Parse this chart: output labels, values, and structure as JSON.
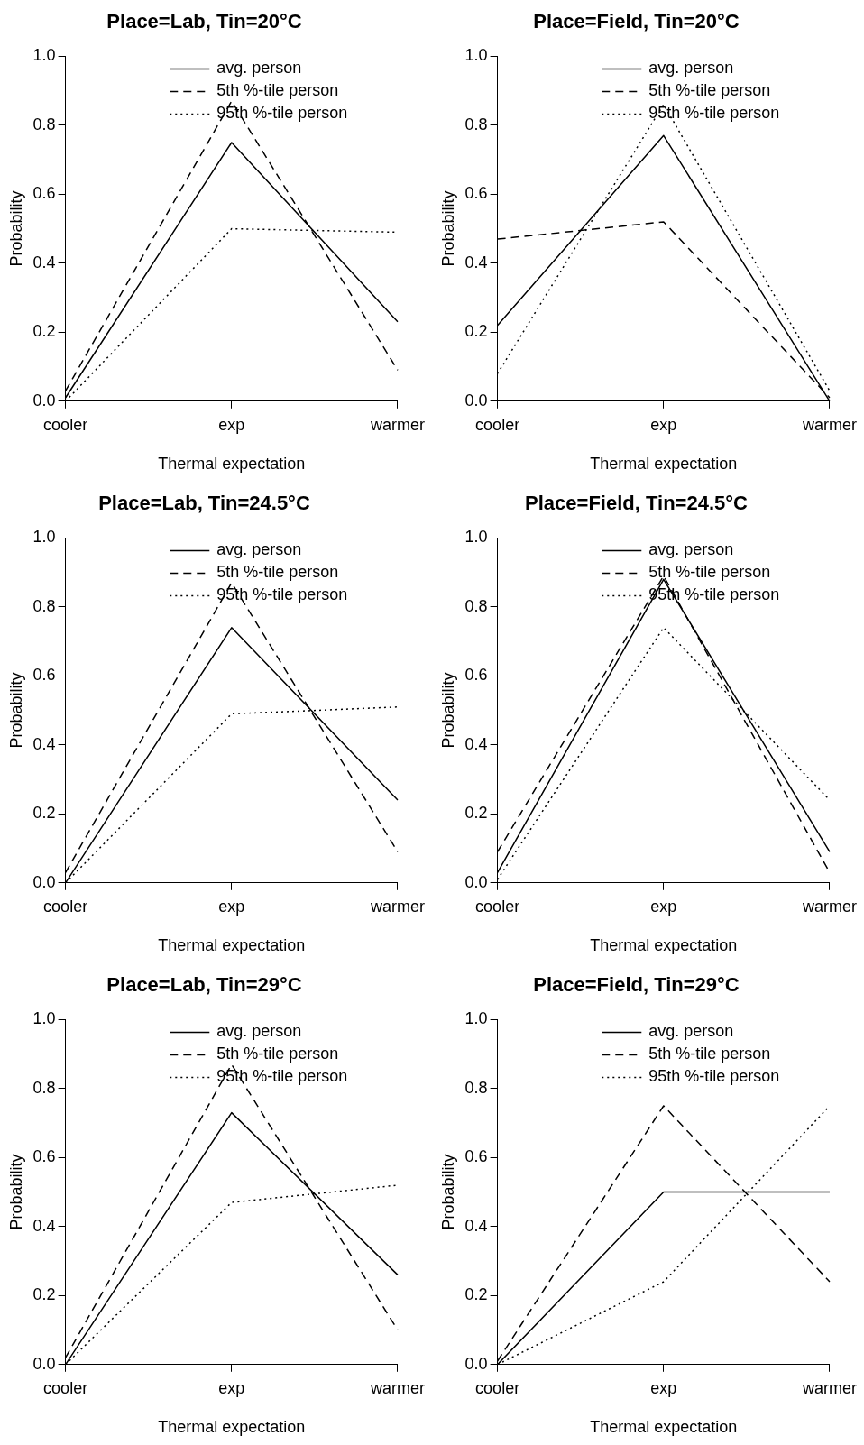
{
  "chart_data": [
    {
      "type": "line",
      "title": "Place=Lab, Tin=20°C",
      "xlabel": "Thermal expectation",
      "ylabel": "Probability",
      "categories": [
        "cooler",
        "exp",
        "warmer"
      ],
      "ylim": [
        0,
        1
      ],
      "yticks": [
        {
          "value": 0,
          "label": "0.0"
        },
        {
          "value": 0.2,
          "label": "0.2"
        },
        {
          "value": 0.4,
          "label": "0.4"
        },
        {
          "value": 0.6,
          "label": "0.6"
        },
        {
          "value": 0.8,
          "label": "0.8"
        },
        {
          "value": 1,
          "label": "1.0"
        }
      ],
      "legend": "top",
      "series": [
        {
          "name": "avg. person",
          "color": "#000000",
          "line_style": "solid",
          "values": [
            0.01,
            0.75,
            0.23
          ]
        },
        {
          "name": "5th %-tile person",
          "color": "#000000",
          "line_style": "dashed",
          "values": [
            0.03,
            0.87,
            0.09
          ]
        },
        {
          "name": "95th %-tile person",
          "color": "#000000",
          "line_style": "dotted",
          "values": [
            0.0,
            0.5,
            0.49
          ]
        }
      ]
    },
    {
      "type": "line",
      "title": "Place=Field, Tin=20°C",
      "xlabel": "Thermal expectation",
      "ylabel": "Probability",
      "categories": [
        "cooler",
        "exp",
        "warmer"
      ],
      "ylim": [
        0,
        1
      ],
      "yticks": [
        {
          "value": 0,
          "label": "0.0"
        },
        {
          "value": 0.2,
          "label": "0.2"
        },
        {
          "value": 0.4,
          "label": "0.4"
        },
        {
          "value": 0.6,
          "label": "0.6"
        },
        {
          "value": 0.8,
          "label": "0.8"
        },
        {
          "value": 1,
          "label": "1.0"
        }
      ],
      "legend": "top",
      "series": [
        {
          "name": "avg. person",
          "color": "#000000",
          "line_style": "solid",
          "values": [
            0.22,
            0.77,
            0.0
          ]
        },
        {
          "name": "5th %-tile person",
          "color": "#000000",
          "line_style": "dashed",
          "values": [
            0.47,
            0.52,
            0.01
          ]
        },
        {
          "name": "95th %-tile person",
          "color": "#000000",
          "line_style": "dotted",
          "values": [
            0.08,
            0.86,
            0.03
          ]
        }
      ]
    },
    {
      "type": "line",
      "title": "Place=Lab, Tin=24.5°C",
      "xlabel": "Thermal expectation",
      "ylabel": "Probability",
      "categories": [
        "cooler",
        "exp",
        "warmer"
      ],
      "ylim": [
        0,
        1
      ],
      "yticks": [
        {
          "value": 0,
          "label": "0.0"
        },
        {
          "value": 0.2,
          "label": "0.2"
        },
        {
          "value": 0.4,
          "label": "0.4"
        },
        {
          "value": 0.6,
          "label": "0.6"
        },
        {
          "value": 0.8,
          "label": "0.8"
        },
        {
          "value": 1,
          "label": "1.0"
        }
      ],
      "legend": "top",
      "series": [
        {
          "name": "avg. person",
          "color": "#000000",
          "line_style": "solid",
          "values": [
            0.0,
            0.74,
            0.24
          ]
        },
        {
          "name": "5th %-tile person",
          "color": "#000000",
          "line_style": "dashed",
          "values": [
            0.03,
            0.87,
            0.09
          ]
        },
        {
          "name": "95th %-tile person",
          "color": "#000000",
          "line_style": "dotted",
          "values": [
            0.0,
            0.49,
            0.51
          ]
        }
      ]
    },
    {
      "type": "line",
      "title": "Place=Field, Tin=24.5°C",
      "xlabel": "Thermal expectation",
      "ylabel": "Probability",
      "categories": [
        "cooler",
        "exp",
        "warmer"
      ],
      "ylim": [
        0,
        1
      ],
      "yticks": [
        {
          "value": 0,
          "label": "0.0"
        },
        {
          "value": 0.2,
          "label": "0.2"
        },
        {
          "value": 0.4,
          "label": "0.4"
        },
        {
          "value": 0.6,
          "label": "0.6"
        },
        {
          "value": 0.8,
          "label": "0.8"
        },
        {
          "value": 1,
          "label": "1.0"
        }
      ],
      "legend": "top",
      "series": [
        {
          "name": "avg. person",
          "color": "#000000",
          "line_style": "solid",
          "values": [
            0.03,
            0.88,
            0.09
          ]
        },
        {
          "name": "5th %-tile person",
          "color": "#000000",
          "line_style": "dashed",
          "values": [
            0.09,
            0.89,
            0.03
          ]
        },
        {
          "name": "95th %-tile person",
          "color": "#000000",
          "line_style": "dotted",
          "values": [
            0.01,
            0.74,
            0.24
          ]
        }
      ]
    },
    {
      "type": "line",
      "title": "Place=Lab, Tin=29°C",
      "xlabel": "Thermal expectation",
      "ylabel": "Probability",
      "categories": [
        "cooler",
        "exp",
        "warmer"
      ],
      "ylim": [
        0,
        1
      ],
      "yticks": [
        {
          "value": 0,
          "label": "0.0"
        },
        {
          "value": 0.2,
          "label": "0.2"
        },
        {
          "value": 0.4,
          "label": "0.4"
        },
        {
          "value": 0.6,
          "label": "0.6"
        },
        {
          "value": 0.8,
          "label": "0.8"
        },
        {
          "value": 1,
          "label": "1.0"
        }
      ],
      "legend": "top",
      "series": [
        {
          "name": "avg. person",
          "color": "#000000",
          "line_style": "solid",
          "values": [
            0.0,
            0.73,
            0.26
          ]
        },
        {
          "name": "5th %-tile person",
          "color": "#000000",
          "line_style": "dashed",
          "values": [
            0.02,
            0.87,
            0.1
          ]
        },
        {
          "name": "95th %-tile person",
          "color": "#000000",
          "line_style": "dotted",
          "values": [
            0.0,
            0.47,
            0.52
          ]
        }
      ]
    },
    {
      "type": "line",
      "title": "Place=Field, Tin=29°C",
      "xlabel": "Thermal expectation",
      "ylabel": "Probability",
      "categories": [
        "cooler",
        "exp",
        "warmer"
      ],
      "ylim": [
        0,
        1
      ],
      "yticks": [
        {
          "value": 0,
          "label": "0.0"
        },
        {
          "value": 0.2,
          "label": "0.2"
        },
        {
          "value": 0.4,
          "label": "0.4"
        },
        {
          "value": 0.6,
          "label": "0.6"
        },
        {
          "value": 0.8,
          "label": "0.8"
        },
        {
          "value": 1,
          "label": "1.0"
        }
      ],
      "legend": "top",
      "series": [
        {
          "name": "avg. person",
          "color": "#000000",
          "line_style": "solid",
          "values": [
            0.0,
            0.5,
            0.5
          ]
        },
        {
          "name": "5th %-tile person",
          "color": "#000000",
          "line_style": "dashed",
          "values": [
            0.01,
            0.75,
            0.24
          ]
        },
        {
          "name": "95th %-tile person",
          "color": "#000000",
          "line_style": "dotted",
          "values": [
            0.0,
            0.24,
            0.75
          ]
        }
      ]
    }
  ]
}
